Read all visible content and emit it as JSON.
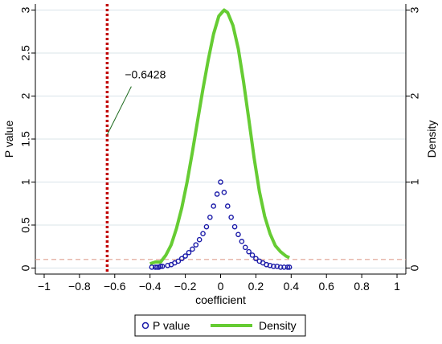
{
  "chart_data": {
    "type": "line",
    "xlabel": "coefficient",
    "ylabel_left": "P value",
    "ylabel_right": "Density",
    "xlim": [
      -1.05,
      1.05
    ],
    "ylim": [
      -0.07,
      3.07
    ],
    "grid": true,
    "x_ticks": [
      -1,
      -0.8,
      -0.6,
      -0.4,
      -0.2,
      0,
      0.2,
      0.4,
      0.6,
      0.8,
      1
    ],
    "x_tick_labels": [
      "−1",
      "−0.8",
      "−0.6",
      "−0.4",
      "−0.2",
      "0",
      "0.2",
      "0.4",
      "0.6",
      "0.8",
      "1"
    ],
    "y_ticks": [
      0,
      0.5,
      1,
      1.5,
      2,
      2.5,
      3
    ],
    "y_tick_labels_left": [
      "0",
      "0.5",
      "1",
      "1.5",
      "2",
      "2.5",
      "3"
    ],
    "y_ticks_right": [
      0,
      1,
      2,
      3
    ],
    "y_tick_labels_right": [
      "0",
      "1",
      "2",
      "3"
    ],
    "reference_lines": {
      "vertical": {
        "x": -0.6428,
        "color": "#c00000",
        "style": "dotted"
      },
      "horizontal": {
        "y": 0.1,
        "color": "#e0a090",
        "style": "dashed"
      }
    },
    "annotation": {
      "text": "−0.6428",
      "x": -0.6428,
      "y": 1.55
    },
    "series": [
      {
        "name": "P value",
        "kind": "scatter",
        "color": "#1a1aa8",
        "x": [
          -0.39,
          -0.37,
          -0.36,
          -0.35,
          -0.34,
          -0.33,
          -0.3,
          -0.28,
          -0.26,
          -0.24,
          -0.22,
          -0.2,
          -0.18,
          -0.16,
          -0.14,
          -0.12,
          -0.1,
          -0.08,
          -0.06,
          -0.04,
          -0.02,
          0,
          0.02,
          0.04,
          0.06,
          0.08,
          0.1,
          0.12,
          0.14,
          0.16,
          0.18,
          0.2,
          0.22,
          0.24,
          0.26,
          0.28,
          0.3,
          0.32,
          0.34,
          0.36,
          0.38,
          0.39
        ],
        "y": [
          0.01,
          0.01,
          0.01,
          0.01,
          0.02,
          0.02,
          0.03,
          0.04,
          0.06,
          0.08,
          0.11,
          0.14,
          0.18,
          0.22,
          0.27,
          0.33,
          0.4,
          0.48,
          0.59,
          0.72,
          0.86,
          1.0,
          0.88,
          0.72,
          0.59,
          0.48,
          0.39,
          0.31,
          0.24,
          0.19,
          0.15,
          0.11,
          0.08,
          0.06,
          0.04,
          0.03,
          0.02,
          0.02,
          0.01,
          0.01,
          0.01,
          0.01
        ]
      },
      {
        "name": "Density",
        "kind": "line",
        "color": "#66cc33",
        "x": [
          -0.4,
          -0.37,
          -0.34,
          -0.31,
          -0.28,
          -0.25,
          -0.22,
          -0.19,
          -0.16,
          -0.13,
          -0.1,
          -0.07,
          -0.04,
          -0.01,
          0.02,
          0.04,
          0.07,
          0.1,
          0.13,
          0.16,
          0.19,
          0.22,
          0.25,
          0.28,
          0.31,
          0.34,
          0.37,
          0.39
        ],
        "y": [
          0.05,
          0.07,
          0.07,
          0.15,
          0.27,
          0.46,
          0.7,
          1.0,
          1.35,
          1.72,
          2.08,
          2.42,
          2.72,
          2.93,
          3.0,
          2.97,
          2.82,
          2.55,
          2.17,
          1.73,
          1.28,
          0.89,
          0.6,
          0.4,
          0.26,
          0.19,
          0.14,
          0.12
        ]
      }
    ],
    "legend": {
      "position": "bottom",
      "entries": [
        "P value",
        "Density"
      ]
    }
  }
}
